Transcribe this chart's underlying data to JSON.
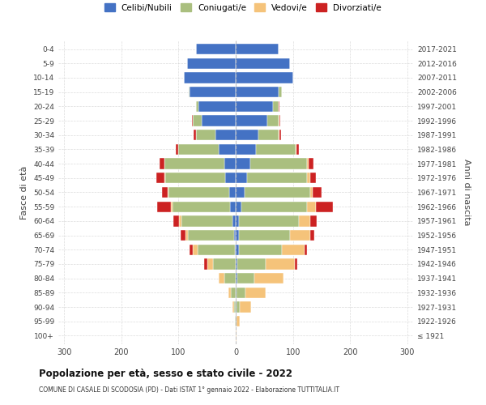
{
  "age_groups": [
    "100+",
    "95-99",
    "90-94",
    "85-89",
    "80-84",
    "75-79",
    "70-74",
    "65-69",
    "60-64",
    "55-59",
    "50-54",
    "45-49",
    "40-44",
    "35-39",
    "30-34",
    "25-29",
    "20-24",
    "15-19",
    "10-14",
    "5-9",
    "0-4"
  ],
  "birth_years": [
    "≤ 1921",
    "1922-1926",
    "1927-1931",
    "1932-1936",
    "1937-1941",
    "1942-1946",
    "1947-1951",
    "1952-1956",
    "1957-1961",
    "1962-1966",
    "1967-1971",
    "1972-1976",
    "1977-1981",
    "1982-1986",
    "1987-1991",
    "1992-1996",
    "1997-2001",
    "2002-2006",
    "2007-2011",
    "2012-2016",
    "2017-2021"
  ],
  "male_single": [
    0,
    0,
    0,
    0,
    0,
    0,
    2,
    3,
    5,
    10,
    12,
    18,
    20,
    30,
    35,
    60,
    65,
    80,
    90,
    85,
    70
  ],
  "male_married": [
    0,
    1,
    3,
    8,
    20,
    40,
    65,
    80,
    90,
    100,
    105,
    105,
    105,
    70,
    35,
    15,
    5,
    2,
    0,
    0,
    0
  ],
  "male_widowed": [
    0,
    0,
    2,
    5,
    10,
    10,
    8,
    5,
    4,
    3,
    2,
    1,
    0,
    0,
    0,
    0,
    0,
    0,
    0,
    0,
    0
  ],
  "male_divorced": [
    0,
    0,
    0,
    0,
    0,
    5,
    5,
    8,
    10,
    25,
    10,
    15,
    8,
    5,
    3,
    2,
    0,
    0,
    0,
    0,
    0
  ],
  "female_single": [
    0,
    1,
    2,
    2,
    3,
    3,
    5,
    5,
    5,
    10,
    15,
    20,
    25,
    35,
    40,
    55,
    65,
    75,
    100,
    95,
    75
  ],
  "female_married": [
    0,
    1,
    5,
    15,
    30,
    50,
    75,
    90,
    105,
    115,
    115,
    105,
    100,
    70,
    35,
    20,
    10,
    5,
    0,
    0,
    0
  ],
  "female_widowed": [
    1,
    5,
    20,
    35,
    50,
    50,
    40,
    35,
    20,
    15,
    5,
    5,
    3,
    1,
    1,
    1,
    0,
    0,
    0,
    0,
    0
  ],
  "female_divorced": [
    0,
    0,
    0,
    0,
    1,
    5,
    5,
    8,
    12,
    30,
    15,
    10,
    8,
    5,
    3,
    2,
    1,
    0,
    0,
    0,
    0
  ],
  "colors": {
    "single": "#4472C4",
    "married": "#AABF7F",
    "widowed": "#F5C37A",
    "divorced": "#CC2222"
  },
  "xlim": 310,
  "title_main": "Popolazione per età, sesso e stato civile - 2022",
  "title_sub": "COMUNE DI CASALE DI SCODOSIA (PD) - Dati ISTAT 1° gennaio 2022 - Elaborazione TUTTITALIA.IT",
  "ylabel_left": "Fasce di età",
  "ylabel_right": "Anni di nascita",
  "legend_labels": [
    "Celibi/Nubili",
    "Coniugati/e",
    "Vedovi/e",
    "Divorziati/e"
  ],
  "bg_color": "#FFFFFF",
  "grid_color": "#CCCCCC"
}
